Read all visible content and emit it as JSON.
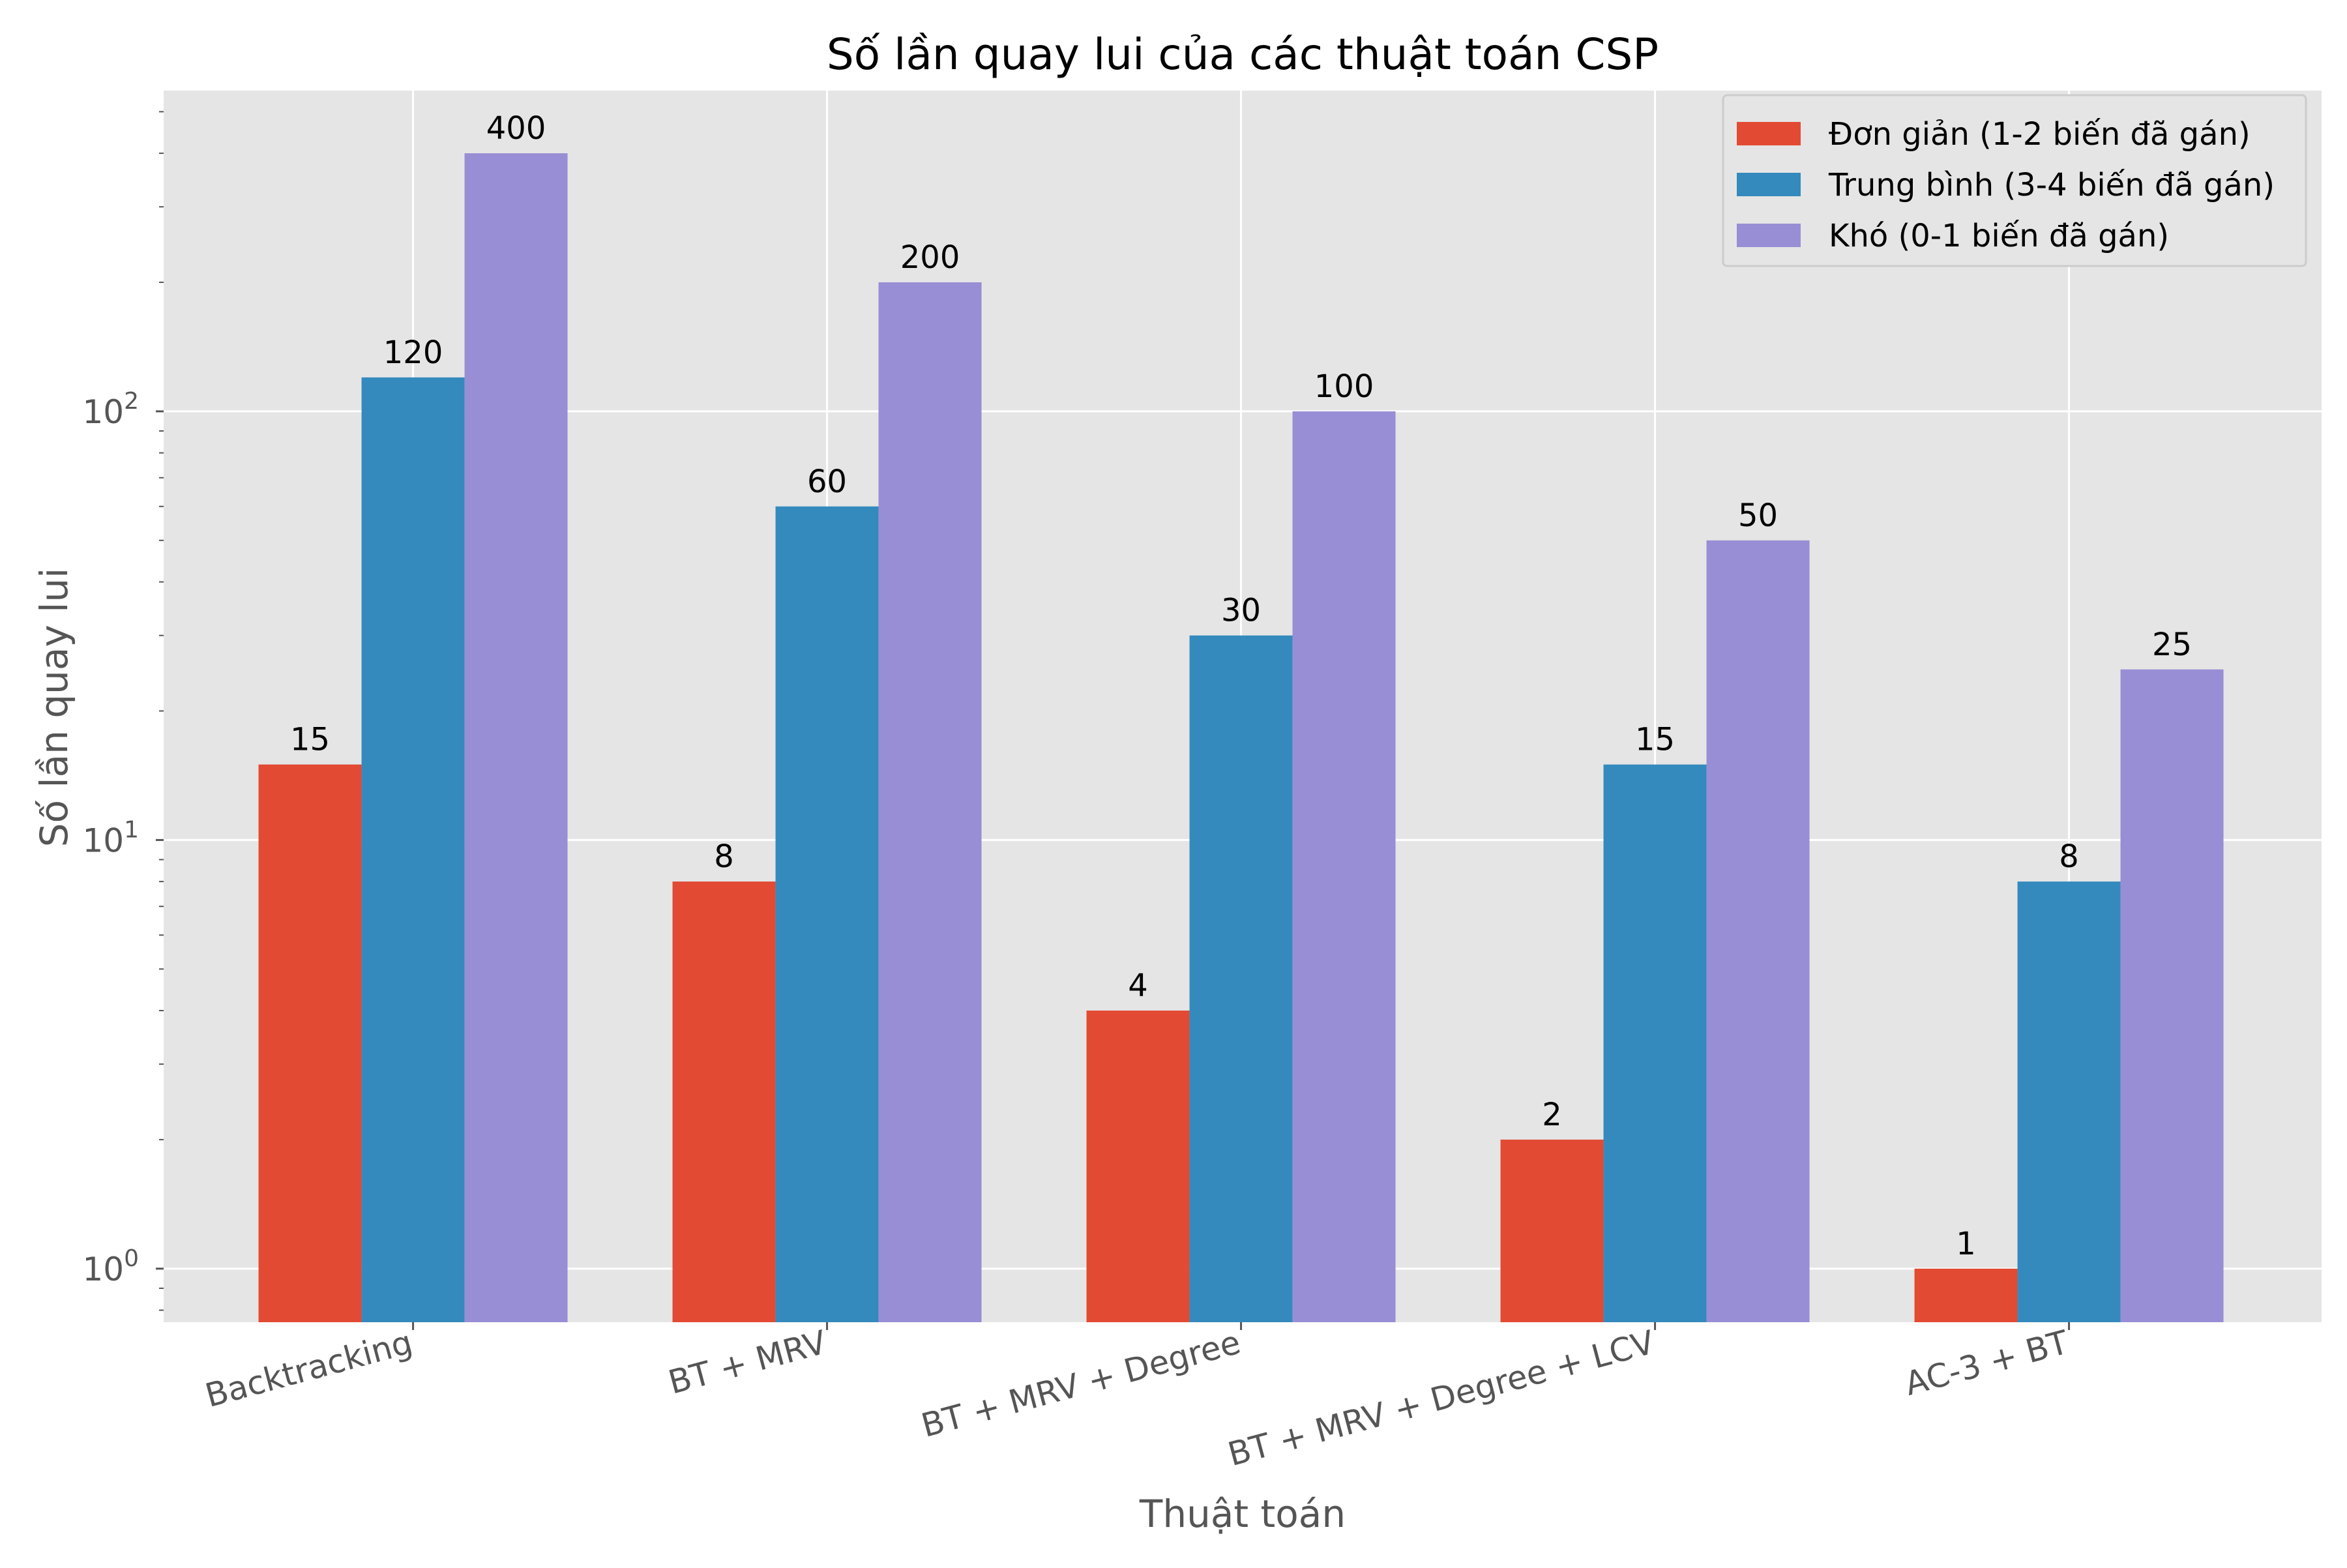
{
  "chart_data": {
    "type": "bar",
    "title": "Số lần quay lui của các thuật toán CSP",
    "xlabel": "Thuật toán",
    "ylabel": "Số lần quay lui",
    "yscale": "log",
    "ylim": [
      0.75,
      560
    ],
    "y_ticks": [
      {
        "value": 1,
        "base": "10",
        "exp": "0"
      },
      {
        "value": 10,
        "base": "10",
        "exp": "1"
      },
      {
        "value": 100,
        "base": "10",
        "exp": "2"
      }
    ],
    "categories": [
      "Backtracking",
      "BT + MRV",
      "BT + MRV + Degree",
      "BT + MRV + Degree + LCV",
      "AC-3 + BT"
    ],
    "series": [
      {
        "name": "Đơn giản (1-2 biến đã gán)",
        "color": "#E24A33",
        "values": [
          15,
          8,
          4,
          2,
          1
        ]
      },
      {
        "name": "Trung bình (3-4 biến đã gán)",
        "color": "#348ABD",
        "values": [
          120,
          60,
          30,
          15,
          8
        ]
      },
      {
        "name": "Khó (0-1 biến đã gán)",
        "color": "#988ED5",
        "values": [
          400,
          200,
          100,
          50,
          25
        ]
      }
    ],
    "grid": true,
    "legend_position": "top-right",
    "background_color": "#E5E5E5"
  }
}
